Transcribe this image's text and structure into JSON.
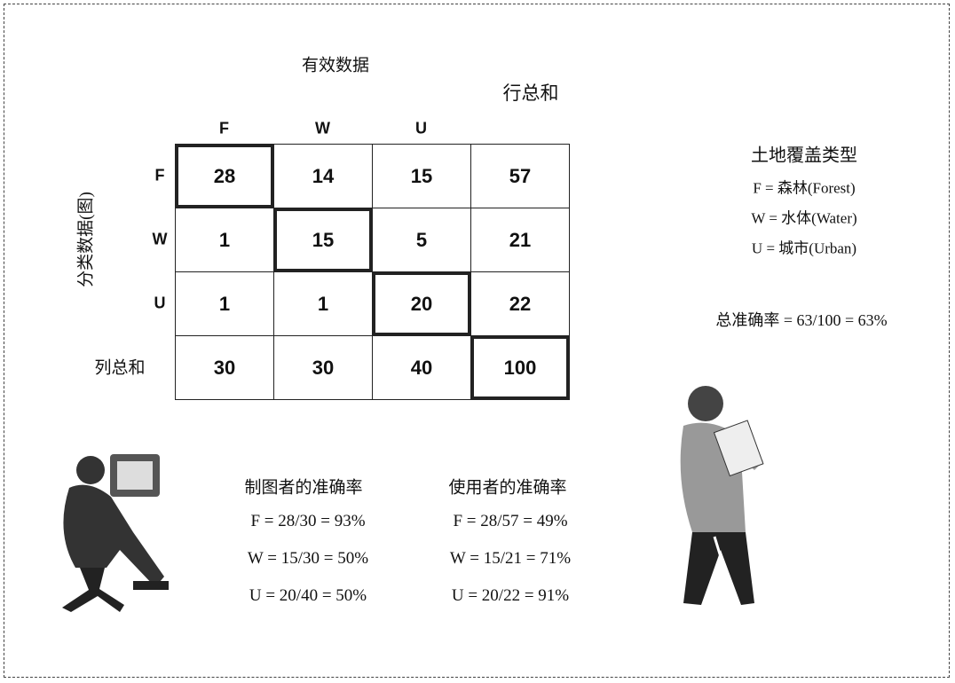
{
  "matrix": {
    "column_header": "有效数据",
    "row_total_header": "行总和",
    "row_axis_label": "分类数据(图)",
    "column_total_label": "列总和",
    "columns": [
      "F",
      "W",
      "U"
    ],
    "rows": [
      {
        "label": "F",
        "cells": [
          28,
          14,
          15,
          57
        ]
      },
      {
        "label": "W",
        "cells": [
          1,
          15,
          5,
          21
        ]
      },
      {
        "label": "U",
        "cells": [
          1,
          1,
          20,
          22
        ]
      }
    ],
    "column_totals": [
      30,
      30,
      40,
      100
    ]
  },
  "legend": {
    "title": "土地覆盖类型",
    "items": [
      "F = 森林(Forest)",
      "W = 水体(Water)",
      "U = 城市(Urban)"
    ]
  },
  "overall_accuracy": "总准确率 = 63/100 = 63%",
  "producer_accuracy": {
    "title": "制图者的准确率",
    "items": [
      "F = 28/30 = 93%",
      "W = 15/30 = 50%",
      "U = 20/40 = 50%"
    ]
  },
  "user_accuracy": {
    "title": "使用者的准确率",
    "items": [
      "F = 28/57 = 49%",
      "W = 15/21 = 71%",
      "U = 20/22 = 91%"
    ]
  }
}
